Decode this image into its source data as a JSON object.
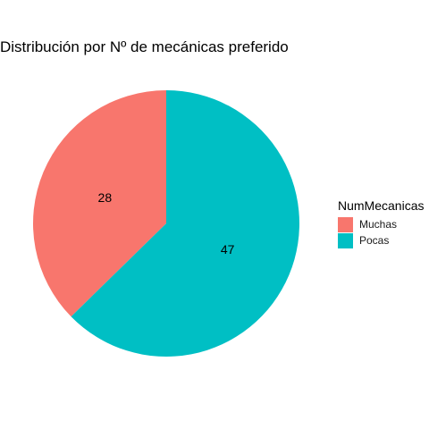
{
  "chart_data": {
    "type": "pie",
    "title": "Distribución por Nº de mecánicas preferido",
    "categories": [
      "Muchas",
      "Pocas"
    ],
    "values": [
      28,
      47
    ],
    "colors": [
      "#F8766D",
      "#00BFC4"
    ],
    "data_labels": [
      "28",
      "47"
    ],
    "legend": {
      "title": "NumMecanicas",
      "placement": "right"
    }
  }
}
